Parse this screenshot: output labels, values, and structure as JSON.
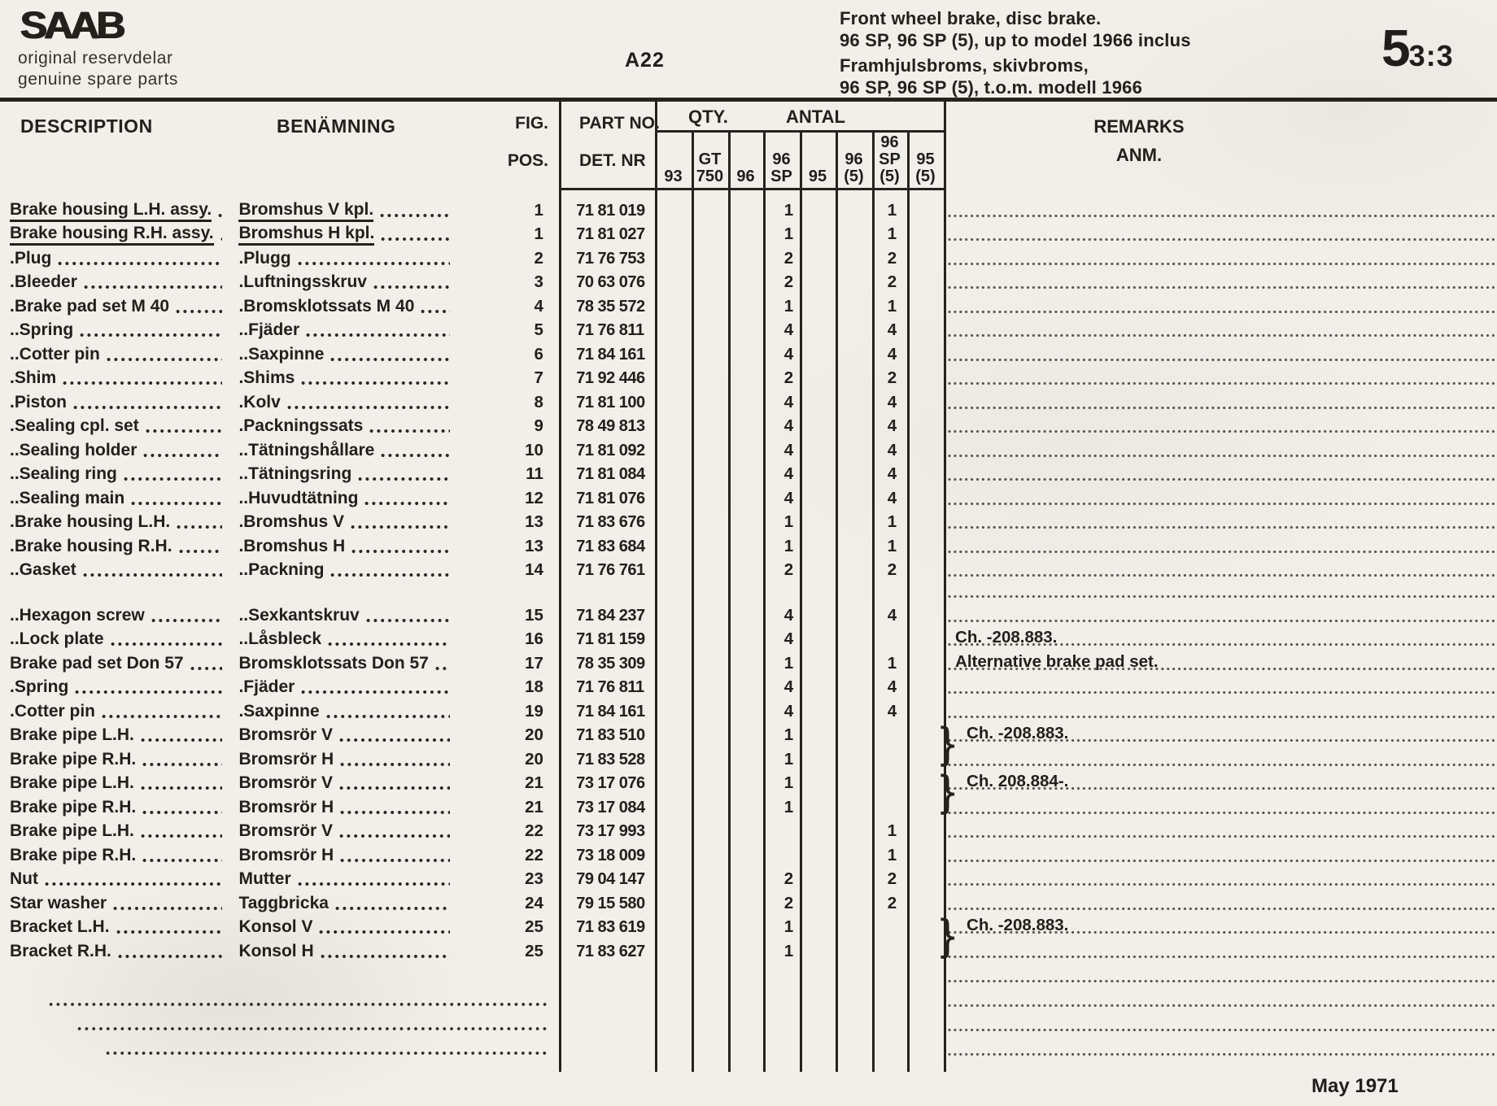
{
  "page": {
    "brand": {
      "logo": "SAAB",
      "line1": "original reservdelar",
      "line2": "genuine spare parts"
    },
    "section_code": "A22",
    "title_en_line1": "Front wheel brake, disc brake.",
    "title_en_line2": "96 SP, 96 SP (5), up to model 1966 inclus",
    "title_sv_line1": "Framhjulsbroms, skivbroms,",
    "title_sv_line2": "96 SP, 96 SP (5), t.o.m. modell 1966",
    "page_number_major": "5",
    "page_number_minor": "3:3",
    "footer_date": "May 1971"
  },
  "table": {
    "headers": {
      "description": "DESCRIPTION",
      "benamning": "BENÄMNING",
      "fig": "FIG.",
      "pos": "POS.",
      "part_no": "PART NO.",
      "det_nr": "DET. NR",
      "qty": "QTY.",
      "antal": "ANTAL",
      "remarks": "REMARKS",
      "anm": "ANM.",
      "qty_columns": [
        [
          "93"
        ],
        [
          "GT",
          "750"
        ],
        [
          "96"
        ],
        [
          "96",
          "SP"
        ],
        [
          "95"
        ],
        [
          "96",
          "(5)"
        ],
        [
          "96",
          "SP",
          "(5)"
        ],
        [
          "95",
          "(5)"
        ]
      ]
    },
    "rows": [
      {
        "desc": "Brake housing L.H. assy.",
        "ben": "Bromshus V kpl.",
        "fig": "1",
        "part": "71 81 019",
        "sp": "1",
        "sp5": "1",
        "u": true
      },
      {
        "desc": "Brake housing R.H. assy.",
        "ben": "Bromshus H kpl.",
        "fig": "1",
        "part": "71 81 027",
        "sp": "1",
        "sp5": "1",
        "u": true
      },
      {
        "desc": ".Plug",
        "ben": ".Plugg",
        "fig": "2",
        "part": "71 76 753",
        "sp": "2",
        "sp5": "2"
      },
      {
        "desc": ".Bleeder",
        "ben": ".Luftningsskruv",
        "fig": "3",
        "part": "70 63 076",
        "sp": "2",
        "sp5": "2"
      },
      {
        "desc": ".Brake pad set M 40",
        "ben": ".Bromsklotssats M 40",
        "fig": "4",
        "part": "78 35 572",
        "sp": "1",
        "sp5": "1"
      },
      {
        "desc": "..Spring",
        "ben": "..Fjäder",
        "fig": "5",
        "part": "71 76 811",
        "sp": "4",
        "sp5": "4"
      },
      {
        "desc": "..Cotter pin",
        "ben": "..Saxpinne",
        "fig": "6",
        "part": "71 84 161",
        "sp": "4",
        "sp5": "4"
      },
      {
        "desc": ".Shim",
        "ben": ".Shims",
        "fig": "7",
        "part": "71 92 446",
        "sp": "2",
        "sp5": "2"
      },
      {
        "desc": ".Piston",
        "ben": ".Kolv",
        "fig": "8",
        "part": "71 81 100",
        "sp": "4",
        "sp5": "4"
      },
      {
        "desc": ".Sealing cpl. set",
        "ben": ".Packningssats",
        "fig": "9",
        "part": "78 49 813",
        "sp": "4",
        "sp5": "4"
      },
      {
        "desc": "..Sealing holder",
        "ben": "..Tätningshållare",
        "fig": "10",
        "part": "71 81 092",
        "sp": "4",
        "sp5": "4"
      },
      {
        "desc": "..Sealing ring",
        "ben": "..Tätningsring",
        "fig": "11",
        "part": "71 81 084",
        "sp": "4",
        "sp5": "4"
      },
      {
        "desc": "..Sealing main",
        "ben": "..Huvudtätning",
        "fig": "12",
        "part": "71 81 076",
        "sp": "4",
        "sp5": "4"
      },
      {
        "desc": ".Brake housing L.H.",
        "ben": ".Bromshus V",
        "fig": "13",
        "part": "71 83 676",
        "sp": "1",
        "sp5": "1"
      },
      {
        "desc": ".Brake housing R.H.",
        "ben": ".Bromshus H",
        "fig": "13",
        "part": "71 83 684",
        "sp": "1",
        "sp5": "1"
      },
      {
        "desc": "..Gasket",
        "ben": "..Packning",
        "fig": "14",
        "part": "71 76 761",
        "sp": "2",
        "sp5": "2"
      },
      {
        "type": "gap"
      },
      {
        "desc": "..Hexagon screw",
        "ben": "..Sexkantskruv",
        "fig": "15",
        "part": "71 84 237",
        "sp": "4",
        "sp5": "4"
      },
      {
        "desc": "..Lock plate",
        "ben": "..Låsbleck",
        "fig": "16",
        "part": "71 81 159",
        "sp": "4",
        "remark": "Ch. -208.883."
      },
      {
        "desc": "Brake pad set Don 57",
        "ben": "Bromsklotssats Don 57",
        "fig": "17",
        "part": "78 35 309",
        "sp": "1",
        "sp5": "1",
        "remark": "Alternative brake pad set."
      },
      {
        "desc": ".Spring",
        "ben": ".Fjäder",
        "fig": "18",
        "part": "71 76 811",
        "sp": "4",
        "sp5": "4"
      },
      {
        "desc": ".Cotter pin",
        "ben": ".Saxpinne",
        "fig": "19",
        "part": "71 84 161",
        "sp": "4",
        "sp5": "4"
      },
      {
        "desc": "Brake pipe L.H.",
        "ben": "Bromsrör V",
        "fig": "20",
        "part": "71 83 510",
        "sp": "1",
        "remark": "Ch. -208.883.",
        "brace": "top"
      },
      {
        "desc": "Brake pipe R.H.",
        "ben": "Bromsrör H",
        "fig": "20",
        "part": "71 83 528",
        "sp": "1",
        "brace": "bottom"
      },
      {
        "desc": "Brake pipe L.H.",
        "ben": "Bromsrör V",
        "fig": "21",
        "part": "73 17 076",
        "sp": "1",
        "remark": "Ch. 208.884-.",
        "brace": "top"
      },
      {
        "desc": "Brake pipe R.H.",
        "ben": "Bromsrör H",
        "fig": "21",
        "part": "73 17 084",
        "sp": "1",
        "brace": "bottom"
      },
      {
        "desc": "Brake pipe L.H.",
        "ben": "Bromsrör V",
        "fig": "22",
        "part": "73 17 993",
        "sp5": "1"
      },
      {
        "desc": "Brake pipe R.H.",
        "ben": "Bromsrör H",
        "fig": "22",
        "part": "73 18 009",
        "sp5": "1"
      },
      {
        "desc": "Nut",
        "ben": "Mutter",
        "fig": "23",
        "part": "79 04 147",
        "sp": "2",
        "sp5": "2"
      },
      {
        "desc": "Star washer",
        "ben": "Taggbricka",
        "fig": "24",
        "part": "79 15 580",
        "sp": "2",
        "sp5": "2"
      },
      {
        "desc": "Bracket L.H.",
        "ben": "Konsol V",
        "fig": "25",
        "part": "71 83 619",
        "sp": "1",
        "remark": "Ch. -208.883.",
        "brace": "top"
      },
      {
        "desc": "Bracket R.H.",
        "ben": "Konsol H",
        "fig": "25",
        "part": "71 83 627",
        "sp": "1",
        "brace": "bottom"
      },
      {
        "type": "dotted"
      },
      {
        "type": "dotted"
      },
      {
        "type": "dotted"
      },
      {
        "type": "dotted"
      }
    ]
  }
}
